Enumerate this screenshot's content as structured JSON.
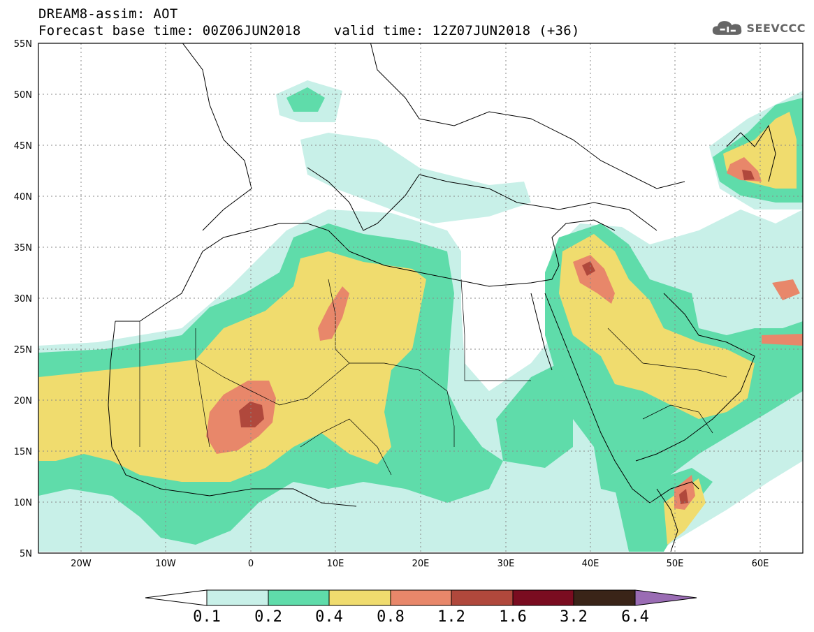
{
  "header": {
    "line1": "DREAM8-assim: AOT",
    "line2": "Forecast base time: 00Z06JUN2018    valid time: 12Z07JUN2018 (+36)"
  },
  "logo": {
    "text": "SEEVCCC",
    "icon": "cloud-icon"
  },
  "map": {
    "lat_range": [
      5,
      55
    ],
    "lon_range": [
      -25,
      65
    ],
    "lat_labels": [
      "55N",
      "50N",
      "45N",
      "40N",
      "35N",
      "30N",
      "25N",
      "20N",
      "15N",
      "10N",
      "5N"
    ],
    "lon_labels": [
      "20W",
      "10W",
      "0",
      "10E",
      "20E",
      "30E",
      "40E",
      "50E",
      "60E"
    ],
    "gridlines": "dotted"
  },
  "colorbar": {
    "labels": [
      "0.1",
      "0.2",
      "0.4",
      "0.8",
      "1.2",
      "1.6",
      "3.2",
      "6.4"
    ],
    "colors": [
      "#c8f0e8",
      "#5fdcaa",
      "#f0dc6e",
      "#e8876a",
      "#b0483c",
      "#7a0c20",
      "#3a2418",
      "#9a6cb4"
    ]
  }
}
